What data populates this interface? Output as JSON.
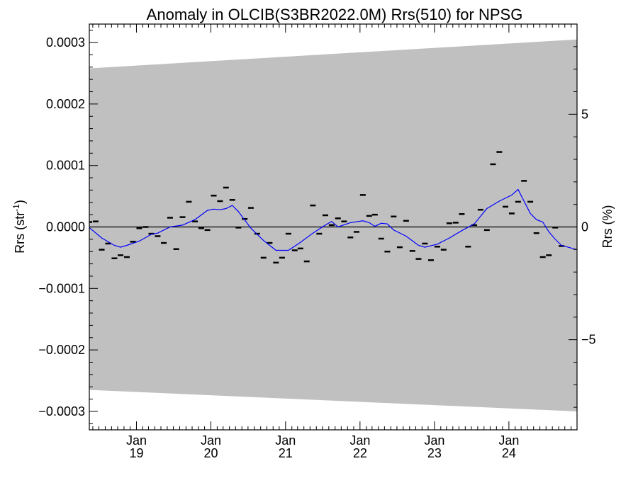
{
  "chart_data": {
    "type": "line",
    "title": "Anomaly in OLCIB(S3BR2022.0M) Rrs(510) for NPSG",
    "ylabel_left": "Rrs (str",
    "ylabel_left_sup": "-1",
    "ylabel_left_close": ")",
    "ylabel_right": "Rrs (%)",
    "x_start": "2018-05-15",
    "x_end": "2024-11-30",
    "xticks": [
      {
        "date": "2019-01-01",
        "month": "Jan",
        "year": "19"
      },
      {
        "date": "2020-01-01",
        "month": "Jan",
        "year": "20"
      },
      {
        "date": "2021-01-01",
        "month": "Jan",
        "year": "21"
      },
      {
        "date": "2022-01-01",
        "month": "Jan",
        "year": "22"
      },
      {
        "date": "2023-01-01",
        "month": "Jan",
        "year": "23"
      },
      {
        "date": "2024-01-01",
        "month": "Jan",
        "year": "24"
      }
    ],
    "ylim_left": [
      -0.00033,
      0.00033
    ],
    "yticks_left": [
      {
        "value": 0.0003,
        "label": "0.0003"
      },
      {
        "value": 0.0002,
        "label": "0.0002"
      },
      {
        "value": 0.0001,
        "label": "0.0001"
      },
      {
        "value": 0.0,
        "label": "0.0000"
      },
      {
        "value": -0.0001,
        "label": "−0.0001"
      },
      {
        "value": -0.0002,
        "label": "−0.0002"
      },
      {
        "value": -0.0003,
        "label": "−0.0003"
      }
    ],
    "ylim_right": [
      -9.0,
      9.0
    ],
    "yticks_right": [
      {
        "value": 5,
        "label": "5"
      },
      {
        "value": 0,
        "label": "0"
      },
      {
        "value": -5,
        "label": "−5"
      }
    ],
    "uncertainty_band": {
      "color": "#c0c0c0",
      "upper": [
        {
          "x": "2018-05-15",
          "y": 0.000258
        },
        {
          "x": "2024-11-30",
          "y": 0.000305
        }
      ],
      "lower": [
        {
          "x": "2018-05-15",
          "y": -0.000265
        },
        {
          "x": "2024-11-30",
          "y": -0.0003
        }
      ]
    },
    "zero_line": 0,
    "series": [
      {
        "style": "dash-markers",
        "color": "#000000",
        "points": [
          {
            "x": "2018-05-15",
            "y": 8e-06
          },
          {
            "x": "2018-06-15",
            "y": 9e-06
          },
          {
            "x": "2018-07-15",
            "y": -3.7e-05
          },
          {
            "x": "2018-08-15",
            "y": -2.7e-05
          },
          {
            "x": "2018-09-15",
            "y": -5.1e-05
          },
          {
            "x": "2018-10-15",
            "y": -4.6e-05
          },
          {
            "x": "2018-11-15",
            "y": -4.9e-05
          },
          {
            "x": "2018-12-15",
            "y": -2.4e-05
          },
          {
            "x": "2019-01-15",
            "y": -2e-06
          },
          {
            "x": "2019-02-15",
            "y": 0.0
          },
          {
            "x": "2019-03-15",
            "y": -1.1e-05
          },
          {
            "x": "2019-04-15",
            "y": -1.5e-05
          },
          {
            "x": "2019-05-15",
            "y": -2.6e-05
          },
          {
            "x": "2019-06-15",
            "y": 1.5e-05
          },
          {
            "x": "2019-07-15",
            "y": -3.6e-05
          },
          {
            "x": "2019-08-15",
            "y": 1.6e-05
          },
          {
            "x": "2019-09-15",
            "y": 4.1e-05
          },
          {
            "x": "2019-10-15",
            "y": 9e-06
          },
          {
            "x": "2019-11-15",
            "y": -2e-06
          },
          {
            "x": "2019-12-15",
            "y": -5e-06
          },
          {
            "x": "2020-01-15",
            "y": 5.1e-05
          },
          {
            "x": "2020-02-15",
            "y": 4.2e-05
          },
          {
            "x": "2020-03-15",
            "y": 6.4e-05
          },
          {
            "x": "2020-04-15",
            "y": 4.4e-05
          },
          {
            "x": "2020-05-15",
            "y": -1e-06
          },
          {
            "x": "2020-06-15",
            "y": 1.3e-05
          },
          {
            "x": "2020-07-15",
            "y": 3.1e-05
          },
          {
            "x": "2020-08-15",
            "y": -1.1e-05
          },
          {
            "x": "2020-09-15",
            "y": -5e-05
          },
          {
            "x": "2020-10-15",
            "y": -2.6e-05
          },
          {
            "x": "2020-11-15",
            "y": -5.8e-05
          },
          {
            "x": "2020-12-15",
            "y": -5e-05
          },
          {
            "x": "2021-01-15",
            "y": -1.1e-05
          },
          {
            "x": "2021-02-15",
            "y": -3.8e-05
          },
          {
            "x": "2021-03-15",
            "y": -3.5e-05
          },
          {
            "x": "2021-04-15",
            "y": -5.6e-05
          },
          {
            "x": "2021-05-15",
            "y": 3.5e-05
          },
          {
            "x": "2021-06-15",
            "y": -1.1e-05
          },
          {
            "x": "2021-07-15",
            "y": 1.9e-05
          },
          {
            "x": "2021-08-15",
            "y": 3e-06
          },
          {
            "x": "2021-09-15",
            "y": 1.4e-05
          },
          {
            "x": "2021-10-15",
            "y": 9e-06
          },
          {
            "x": "2021-11-15",
            "y": -1.7e-05
          },
          {
            "x": "2021-12-15",
            "y": -8e-06
          },
          {
            "x": "2022-01-15",
            "y": 5.2e-05
          },
          {
            "x": "2022-02-15",
            "y": 1.8e-05
          },
          {
            "x": "2022-03-15",
            "y": 2e-05
          },
          {
            "x": "2022-04-15",
            "y": -1.9e-05
          },
          {
            "x": "2022-05-15",
            "y": -4e-05
          },
          {
            "x": "2022-06-15",
            "y": 1.7e-05
          },
          {
            "x": "2022-07-15",
            "y": -3.3e-05
          },
          {
            "x": "2022-08-15",
            "y": 1e-05
          },
          {
            "x": "2022-09-15",
            "y": -3.9e-05
          },
          {
            "x": "2022-10-15",
            "y": -5.2e-05
          },
          {
            "x": "2022-11-15",
            "y": -2.7e-05
          },
          {
            "x": "2022-12-15",
            "y": -5.4e-05
          },
          {
            "x": "2023-01-15",
            "y": -3.2e-05
          },
          {
            "x": "2023-02-15",
            "y": -3.7e-05
          },
          {
            "x": "2023-03-15",
            "y": 6e-06
          },
          {
            "x": "2023-04-15",
            "y": 7e-06
          },
          {
            "x": "2023-05-15",
            "y": 2.1e-05
          },
          {
            "x": "2023-06-15",
            "y": -3.2e-05
          },
          {
            "x": "2023-07-15",
            "y": 3e-06
          },
          {
            "x": "2023-08-15",
            "y": 2.8e-05
          },
          {
            "x": "2023-09-15",
            "y": -5e-06
          },
          {
            "x": "2023-10-15",
            "y": 0.000102
          },
          {
            "x": "2023-11-15",
            "y": 0.000122
          },
          {
            "x": "2023-12-15",
            "y": 3.3e-05
          },
          {
            "x": "2024-01-15",
            "y": 2.2e-05
          },
          {
            "x": "2024-02-15",
            "y": 4.1e-05
          },
          {
            "x": "2024-03-15",
            "y": 7.5e-05
          },
          {
            "x": "2024-04-15",
            "y": 4.1e-05
          },
          {
            "x": "2024-05-15",
            "y": -1e-05
          },
          {
            "x": "2024-06-15",
            "y": -4.9e-05
          },
          {
            "x": "2024-07-15",
            "y": -4.6e-05
          },
          {
            "x": "2024-08-15",
            "y": -1e-06
          },
          {
            "x": "2024-09-15",
            "y": -3.1e-05
          }
        ]
      },
      {
        "style": "line",
        "color": "#0000ff",
        "points": [
          {
            "x": "2018-05-15",
            "y": -1e-06
          },
          {
            "x": "2018-07-15",
            "y": -1.8e-05
          },
          {
            "x": "2018-09-15",
            "y": -3e-05
          },
          {
            "x": "2018-10-15",
            "y": -3.3e-05
          },
          {
            "x": "2018-11-15",
            "y": -3e-05
          },
          {
            "x": "2019-01-15",
            "y": -2.3e-05
          },
          {
            "x": "2019-03-15",
            "y": -1.2e-05
          },
          {
            "x": "2019-04-15",
            "y": -1e-05
          },
          {
            "x": "2019-06-15",
            "y": 0.0
          },
          {
            "x": "2019-08-15",
            "y": 3e-06
          },
          {
            "x": "2019-10-15",
            "y": 1.2e-05
          },
          {
            "x": "2019-12-15",
            "y": 2.7e-05
          },
          {
            "x": "2020-01-15",
            "y": 2.9e-05
          },
          {
            "x": "2020-02-15",
            "y": 2.8e-05
          },
          {
            "x": "2020-03-15",
            "y": 3e-05
          },
          {
            "x": "2020-04-15",
            "y": 3.5e-05
          },
          {
            "x": "2020-05-15",
            "y": 2.5e-05
          },
          {
            "x": "2020-07-15",
            "y": -2e-06
          },
          {
            "x": "2020-09-15",
            "y": -2.2e-05
          },
          {
            "x": "2020-11-15",
            "y": -3.8e-05
          },
          {
            "x": "2021-01-15",
            "y": -3.8e-05
          },
          {
            "x": "2021-03-15",
            "y": -2.5e-05
          },
          {
            "x": "2021-05-15",
            "y": -1e-05
          },
          {
            "x": "2021-07-15",
            "y": 3e-06
          },
          {
            "x": "2021-08-15",
            "y": 9e-06
          },
          {
            "x": "2021-09-15",
            "y": 0.0
          },
          {
            "x": "2021-11-15",
            "y": 7e-06
          },
          {
            "x": "2022-01-15",
            "y": 1e-05
          },
          {
            "x": "2022-02-15",
            "y": 7e-06
          },
          {
            "x": "2022-03-15",
            "y": 1e-06
          },
          {
            "x": "2022-04-15",
            "y": 6e-06
          },
          {
            "x": "2022-05-15",
            "y": 5e-06
          },
          {
            "x": "2022-06-15",
            "y": -5e-06
          },
          {
            "x": "2022-08-15",
            "y": -1.5e-05
          },
          {
            "x": "2022-10-15",
            "y": -3e-05
          },
          {
            "x": "2022-11-15",
            "y": -3.3e-05
          },
          {
            "x": "2023-01-15",
            "y": -2.8e-05
          },
          {
            "x": "2023-03-15",
            "y": -1.8e-05
          },
          {
            "x": "2023-05-15",
            "y": -6e-06
          },
          {
            "x": "2023-07-15",
            "y": 5e-06
          },
          {
            "x": "2023-09-15",
            "y": 3e-05
          },
          {
            "x": "2023-11-15",
            "y": 4.2e-05
          },
          {
            "x": "2024-01-15",
            "y": 5.2e-05
          },
          {
            "x": "2024-02-15",
            "y": 6.1e-05
          },
          {
            "x": "2024-03-15",
            "y": 4.2e-05
          },
          {
            "x": "2024-04-15",
            "y": 2.2e-05
          },
          {
            "x": "2024-05-15",
            "y": 1.2e-05
          },
          {
            "x": "2024-06-15",
            "y": 8e-06
          },
          {
            "x": "2024-07-15",
            "y": -8e-06
          },
          {
            "x": "2024-08-15",
            "y": -2e-05
          },
          {
            "x": "2024-09-15",
            "y": -3e-05
          },
          {
            "x": "2024-11-30",
            "y": -3.7e-05
          }
        ]
      }
    ]
  }
}
